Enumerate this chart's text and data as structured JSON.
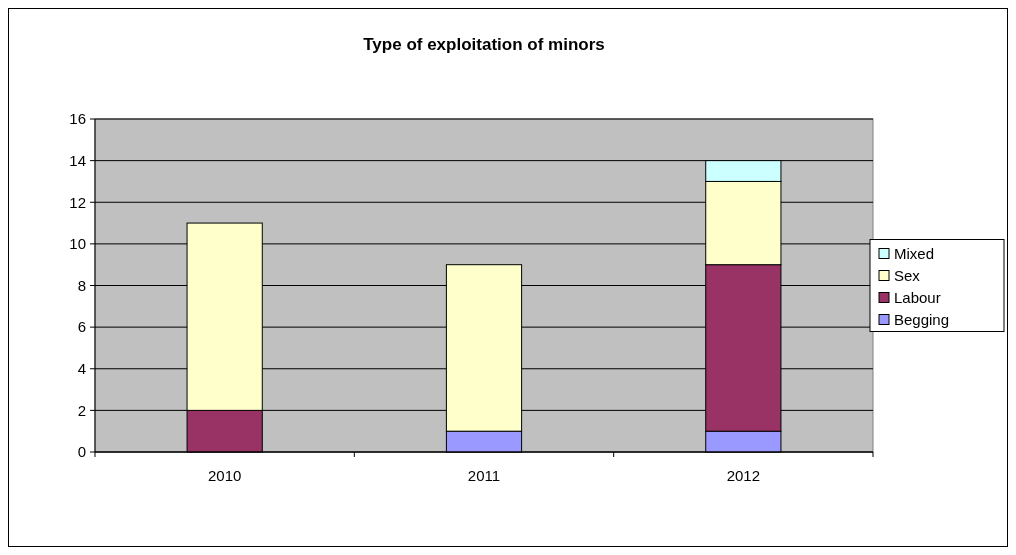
{
  "chart_data": {
    "type": "bar",
    "title": "Type of exploitation of minors",
    "categories": [
      "2010",
      "2011",
      "2012"
    ],
    "stacked": true,
    "series": [
      {
        "name": "Begging",
        "color": "#9999ff",
        "values": [
          0,
          1,
          1
        ]
      },
      {
        "name": "Labour",
        "color": "#993366",
        "values": [
          2,
          0,
          8
        ]
      },
      {
        "name": "Sex",
        "color": "#ffffcc",
        "values": [
          9,
          8,
          4
        ]
      },
      {
        "name": "Mixed",
        "color": "#ccffff",
        "values": [
          0,
          0,
          1
        ]
      }
    ],
    "ylim": [
      0,
      16
    ],
    "yticks": [
      0,
      2,
      4,
      6,
      8,
      10,
      12,
      14,
      16
    ],
    "grid": "y",
    "legend": "right"
  }
}
